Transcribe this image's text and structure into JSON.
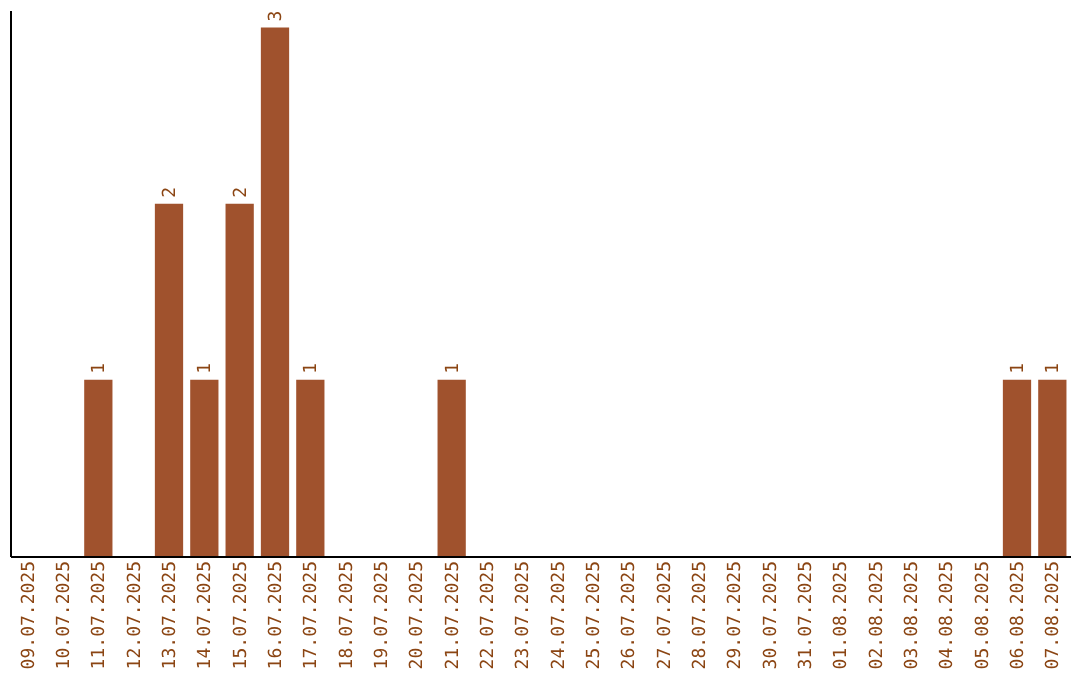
{
  "chart_data": {
    "type": "bar",
    "categories": [
      "09.07.2025",
      "10.07.2025",
      "11.07.2025",
      "12.07.2025",
      "13.07.2025",
      "14.07.2025",
      "15.07.2025",
      "16.07.2025",
      "17.07.2025",
      "18.07.2025",
      "19.07.2025",
      "20.07.2025",
      "21.07.2025",
      "22.07.2025",
      "23.07.2025",
      "24.07.2025",
      "25.07.2025",
      "26.07.2025",
      "27.07.2025",
      "28.07.2025",
      "29.07.2025",
      "30.07.2025",
      "31.07.2025",
      "01.08.2025",
      "02.08.2025",
      "03.08.2025",
      "04.08.2025",
      "05.08.2025",
      "06.08.2025",
      "07.08.2025"
    ],
    "values": [
      null,
      null,
      1,
      null,
      2,
      1,
      2,
      3,
      1,
      null,
      null,
      null,
      1,
      null,
      null,
      null,
      null,
      null,
      null,
      null,
      null,
      null,
      null,
      null,
      null,
      null,
      null,
      null,
      1,
      1
    ],
    "color": "#a0522d",
    "ylim": [
      0,
      3.1
    ],
    "data_labels": true,
    "tick_labels": "x",
    "grid": false
  }
}
